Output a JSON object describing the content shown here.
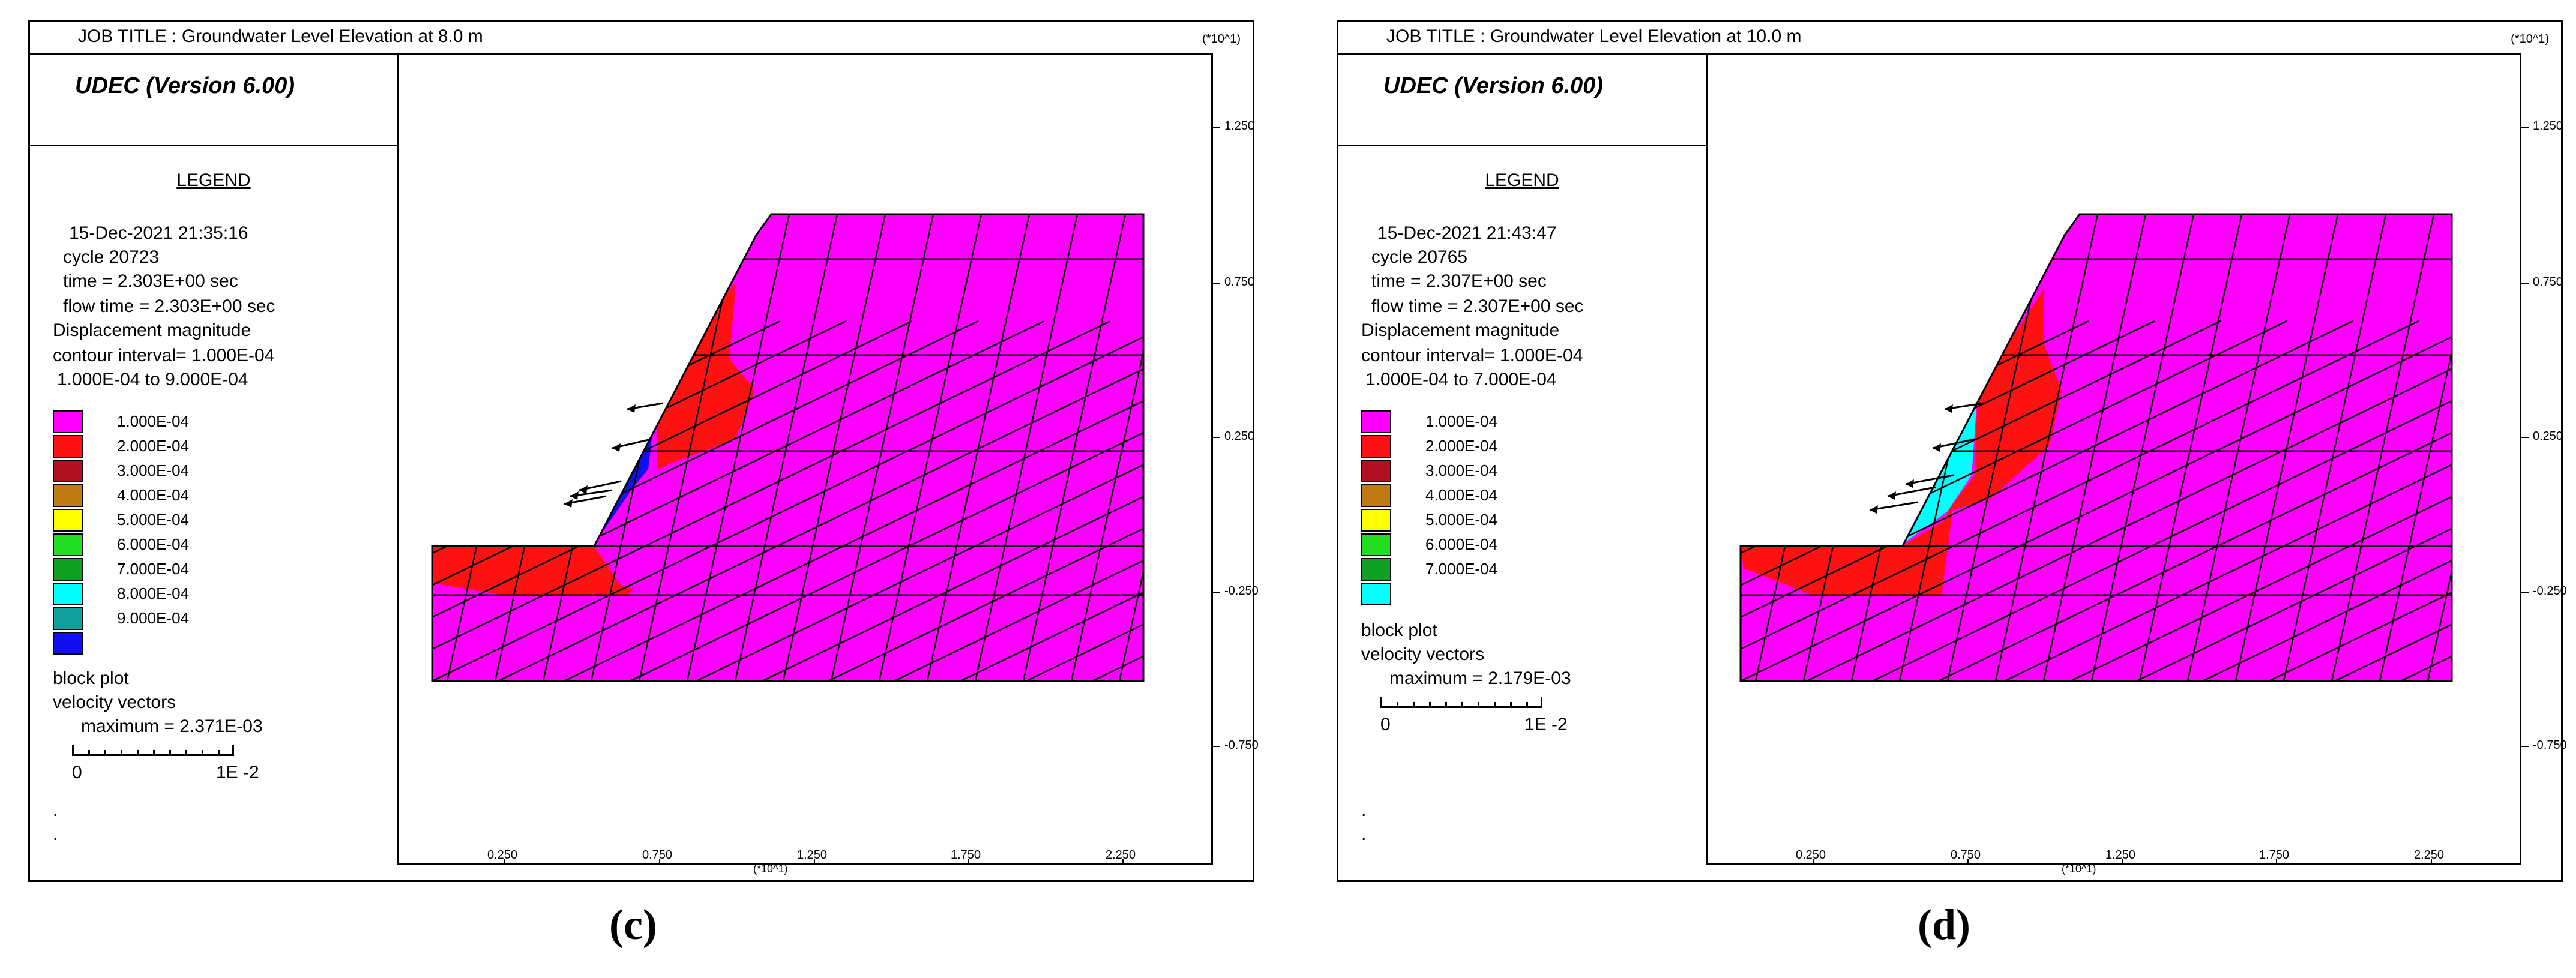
{
  "panels": [
    {
      "id": "c",
      "title": "JOB TITLE :  Groundwater Level Elevation at 8.0 m",
      "version": "UDEC (Version 6.00)",
      "legend_label": "LEGEND",
      "date": "15-Dec-2021  21:35:16",
      "cycle": "cycle     20723",
      "time": "time  =  2.303E+00 sec",
      "flow_time": "flow time = 2.303E+00 sec",
      "contour_name": "Displacement magnitude",
      "contour_interval": "contour interval= 1.000E-04",
      "contour_range": "1.000E-04 to  9.000E-04",
      "contours": [
        {
          "label": "1.000E-04",
          "color": "#ff00ff"
        },
        {
          "label": "2.000E-04",
          "color": "#ff1111"
        },
        {
          "label": "3.000E-04",
          "color": "#b01020"
        },
        {
          "label": "4.000E-04",
          "color": "#c07a12"
        },
        {
          "label": "5.000E-04",
          "color": "#ffff00"
        },
        {
          "label": "6.000E-04",
          "color": "#22dd22"
        },
        {
          "label": "7.000E-04",
          "color": "#10a020"
        },
        {
          "label": "8.000E-04",
          "color": "#00ffff"
        },
        {
          "label": "9.000E-04",
          "color": "#10a0a0"
        },
        {
          "label": "",
          "color": "#1010ee"
        }
      ],
      "block_plot": "block plot",
      "vectors": "velocity vectors",
      "vec_max": "maximum =    2.371E-03",
      "scale_left": "0",
      "scale_right": "1E -2",
      "exp_label": "(*10^1)",
      "y_ticks": [
        "1.250",
        "0.750",
        "0.250",
        "-0.250",
        "-0.750"
      ],
      "x_ticks": [
        "0.250",
        "0.750",
        "1.250",
        "1.750",
        "2.250"
      ],
      "caption": "(c)"
    },
    {
      "id": "d",
      "title": "JOB TITLE :  Groundwater Level Elevation at 10.0 m",
      "version": "UDEC (Version 6.00)",
      "legend_label": "LEGEND",
      "date": "15-Dec-2021  21:43:47",
      "cycle": "cycle     20765",
      "time": "time  =  2.307E+00 sec",
      "flow_time": "flow time = 2.307E+00 sec",
      "contour_name": "Displacement magnitude",
      "contour_interval": "contour interval= 1.000E-04",
      "contour_range": "1.000E-04 to  7.000E-04",
      "contours": [
        {
          "label": "1.000E-04",
          "color": "#ff00ff"
        },
        {
          "label": "2.000E-04",
          "color": "#ff1111"
        },
        {
          "label": "3.000E-04",
          "color": "#b01020"
        },
        {
          "label": "4.000E-04",
          "color": "#c07a12"
        },
        {
          "label": "5.000E-04",
          "color": "#ffff00"
        },
        {
          "label": "6.000E-04",
          "color": "#22dd22"
        },
        {
          "label": "7.000E-04",
          "color": "#10a020"
        },
        {
          "label": "",
          "color": "#00ffff"
        }
      ],
      "block_plot": "block plot",
      "vectors": "velocity vectors",
      "vec_max": "maximum =    2.179E-03",
      "scale_left": "0",
      "scale_right": "1E -2",
      "exp_label": "(*10^1)",
      "y_ticks": [
        "1.250",
        "0.750",
        "0.250",
        "-0.250",
        "-0.750"
      ],
      "x_ticks": [
        "0.250",
        "0.750",
        "1.250",
        "1.750",
        "2.250"
      ],
      "caption": "(d)"
    }
  ]
}
